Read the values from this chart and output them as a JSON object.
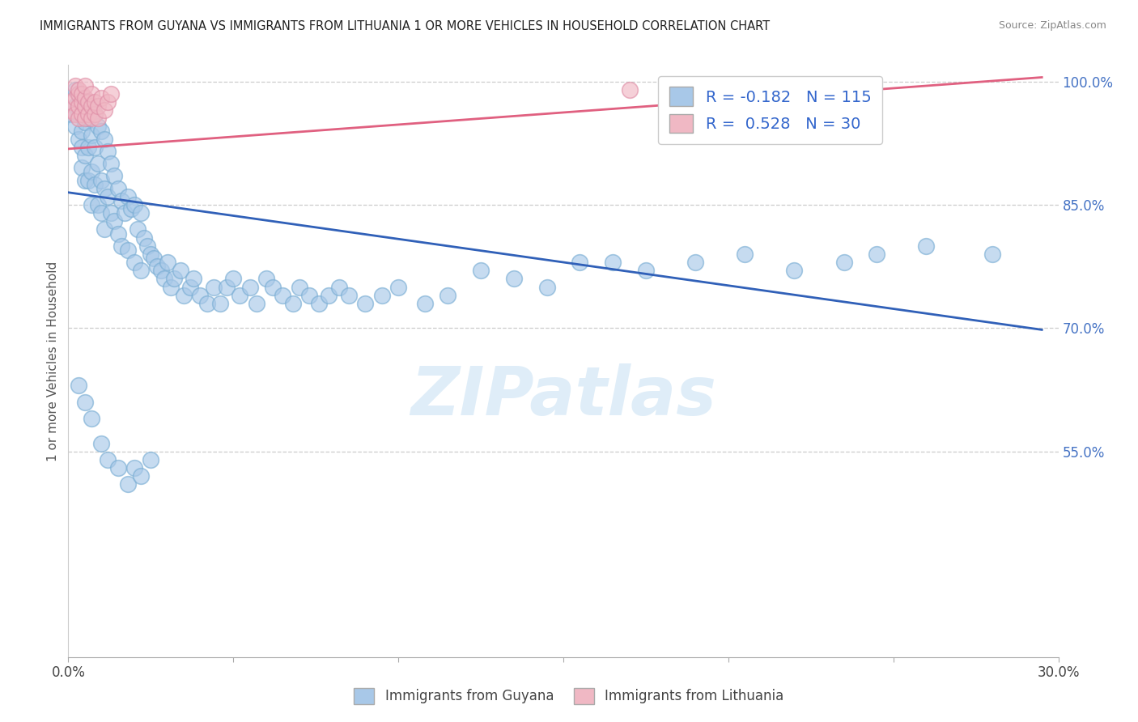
{
  "title": "IMMIGRANTS FROM GUYANA VS IMMIGRANTS FROM LITHUANIA 1 OR MORE VEHICLES IN HOUSEHOLD CORRELATION CHART",
  "source": "Source: ZipAtlas.com",
  "ylabel": "1 or more Vehicles in Household",
  "xmin": 0.0,
  "xmax": 0.3,
  "ymin": 0.3,
  "ymax": 1.02,
  "guyana_color": "#a8c8e8",
  "guyana_edge": "#7aaed4",
  "lithuania_color": "#f0b8c4",
  "lithuania_edge": "#e090a8",
  "guyana_line_color": "#3060b8",
  "lithuania_line_color": "#e06080",
  "guyana_R": -0.182,
  "guyana_N": 115,
  "lithuania_R": 0.528,
  "lithuania_N": 30,
  "legend_label_guyana": "Immigrants from Guyana",
  "legend_label_lithuania": "Immigrants from Lithuania",
  "watermark": "ZIPatlas",
  "guyana_line_x0": 0.0,
  "guyana_line_y0": 0.865,
  "guyana_line_x1": 0.295,
  "guyana_line_y1": 0.698,
  "lithuania_line_x0": 0.0,
  "lithuania_line_y0": 0.918,
  "lithuania_line_x1": 0.295,
  "lithuania_line_y1": 1.005,
  "guyana_x": [
    0.001,
    0.002,
    0.002,
    0.002,
    0.003,
    0.003,
    0.003,
    0.003,
    0.004,
    0.004,
    0.004,
    0.004,
    0.005,
    0.005,
    0.005,
    0.005,
    0.006,
    0.006,
    0.006,
    0.007,
    0.007,
    0.007,
    0.007,
    0.008,
    0.008,
    0.008,
    0.009,
    0.009,
    0.009,
    0.01,
    0.01,
    0.01,
    0.011,
    0.011,
    0.011,
    0.012,
    0.012,
    0.013,
    0.013,
    0.014,
    0.014,
    0.015,
    0.015,
    0.016,
    0.016,
    0.017,
    0.018,
    0.018,
    0.019,
    0.02,
    0.02,
    0.021,
    0.022,
    0.022,
    0.023,
    0.024,
    0.025,
    0.026,
    0.027,
    0.028,
    0.029,
    0.03,
    0.031,
    0.032,
    0.034,
    0.035,
    0.037,
    0.038,
    0.04,
    0.042,
    0.044,
    0.046,
    0.048,
    0.05,
    0.052,
    0.055,
    0.057,
    0.06,
    0.062,
    0.065,
    0.068,
    0.07,
    0.073,
    0.076,
    0.079,
    0.082,
    0.085,
    0.09,
    0.095,
    0.1,
    0.108,
    0.115,
    0.125,
    0.135,
    0.145,
    0.155,
    0.165,
    0.175,
    0.19,
    0.205,
    0.22,
    0.235,
    0.245,
    0.26,
    0.28,
    0.003,
    0.005,
    0.007,
    0.01,
    0.012,
    0.015,
    0.018,
    0.02,
    0.022,
    0.025
  ],
  "guyana_y": [
    0.96,
    0.97,
    0.99,
    0.945,
    0.975,
    0.96,
    0.93,
    0.985,
    0.965,
    0.94,
    0.92,
    0.895,
    0.975,
    0.95,
    0.91,
    0.88,
    0.955,
    0.92,
    0.88,
    0.965,
    0.935,
    0.89,
    0.85,
    0.96,
    0.92,
    0.875,
    0.945,
    0.9,
    0.85,
    0.94,
    0.88,
    0.84,
    0.93,
    0.87,
    0.82,
    0.915,
    0.86,
    0.9,
    0.84,
    0.885,
    0.83,
    0.87,
    0.815,
    0.855,
    0.8,
    0.84,
    0.86,
    0.795,
    0.845,
    0.85,
    0.78,
    0.82,
    0.84,
    0.77,
    0.81,
    0.8,
    0.79,
    0.785,
    0.775,
    0.77,
    0.76,
    0.78,
    0.75,
    0.76,
    0.77,
    0.74,
    0.75,
    0.76,
    0.74,
    0.73,
    0.75,
    0.73,
    0.75,
    0.76,
    0.74,
    0.75,
    0.73,
    0.76,
    0.75,
    0.74,
    0.73,
    0.75,
    0.74,
    0.73,
    0.74,
    0.75,
    0.74,
    0.73,
    0.74,
    0.75,
    0.73,
    0.74,
    0.77,
    0.76,
    0.75,
    0.78,
    0.78,
    0.77,
    0.78,
    0.79,
    0.77,
    0.78,
    0.79,
    0.8,
    0.79,
    0.63,
    0.61,
    0.59,
    0.56,
    0.54,
    0.53,
    0.51,
    0.53,
    0.52,
    0.54
  ],
  "lithuania_x": [
    0.001,
    0.001,
    0.002,
    0.002,
    0.002,
    0.003,
    0.003,
    0.003,
    0.003,
    0.004,
    0.004,
    0.004,
    0.005,
    0.005,
    0.005,
    0.005,
    0.006,
    0.006,
    0.007,
    0.007,
    0.007,
    0.008,
    0.008,
    0.009,
    0.009,
    0.01,
    0.011,
    0.012,
    0.013,
    0.17
  ],
  "lithuania_y": [
    0.965,
    0.975,
    0.96,
    0.98,
    0.995,
    0.955,
    0.97,
    0.985,
    0.99,
    0.96,
    0.975,
    0.985,
    0.955,
    0.97,
    0.98,
    0.995,
    0.96,
    0.975,
    0.955,
    0.97,
    0.985,
    0.96,
    0.975,
    0.955,
    0.97,
    0.98,
    0.965,
    0.975,
    0.985,
    0.99
  ]
}
